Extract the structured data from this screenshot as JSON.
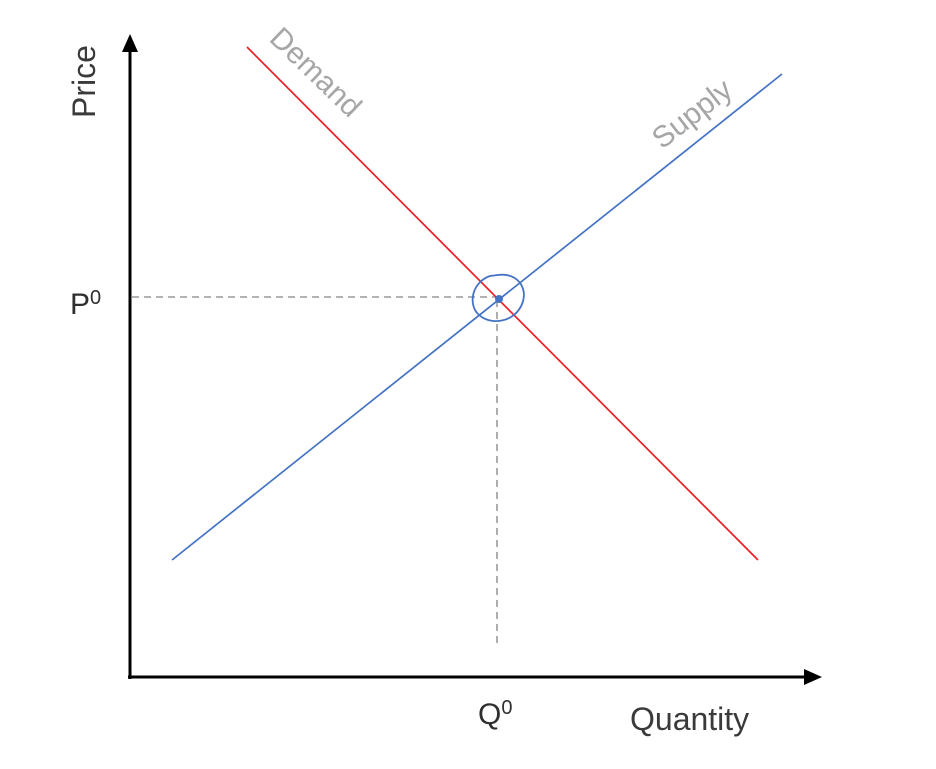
{
  "diagram": {
    "type": "supply-demand",
    "axes": {
      "x_title": "Quantity",
      "y_title": "Price"
    },
    "equilibrium": {
      "price_label": "P",
      "price_superscript": "0",
      "quantity_label": "Q",
      "quantity_superscript": "0"
    },
    "curves": {
      "demand_label": "Demand",
      "supply_label": "Supply"
    },
    "colors": {
      "demand": "#ee1c24",
      "supply": "#4472c4",
      "guides": "#9a9a9a",
      "axes": "#000000"
    }
  }
}
